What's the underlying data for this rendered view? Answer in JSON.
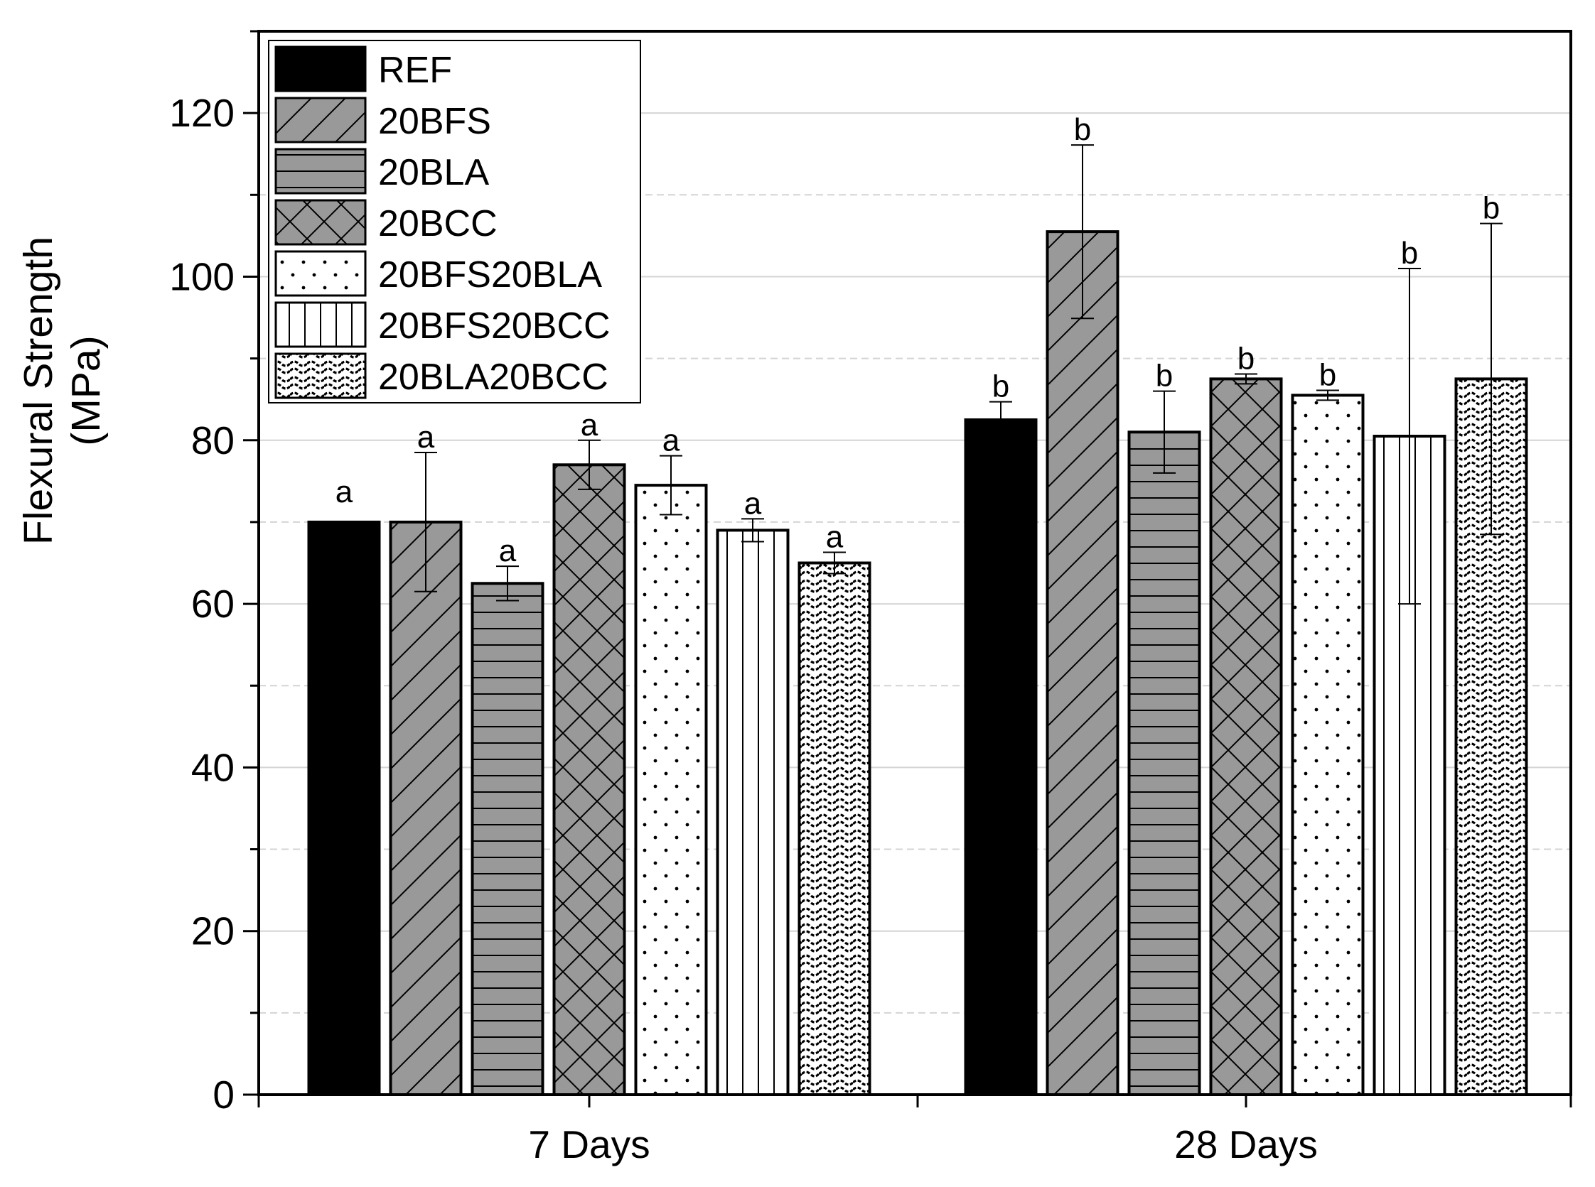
{
  "chart_data": {
    "type": "bar",
    "ylabel_line1": "Flexural Strength",
    "ylabel_line2": "(MPa)",
    "xlabel": "",
    "ylim": [
      0,
      130
    ],
    "yticks": [
      0,
      20,
      40,
      60,
      80,
      100,
      120
    ],
    "categories": [
      "7 Days",
      "28 Days"
    ],
    "grid": true,
    "legend_position": "top-left",
    "series": [
      {
        "name": "REF",
        "pattern": "solid",
        "values": [
          70,
          82.5
        ],
        "errors": [
          0,
          2.2
        ],
        "labels": [
          "a",
          "b"
        ]
      },
      {
        "name": "20BFS",
        "pattern": "diagonal",
        "values": [
          70,
          105.5
        ],
        "errors": [
          8.5,
          10.6
        ],
        "labels": [
          "a",
          "b"
        ]
      },
      {
        "name": "20BLA",
        "pattern": "horizontal",
        "values": [
          62.5,
          81
        ],
        "errors": [
          2.1,
          5
        ],
        "labels": [
          "a",
          "b"
        ]
      },
      {
        "name": "20BCC",
        "pattern": "crosshatch",
        "values": [
          77,
          87.5
        ],
        "errors": [
          3,
          0.6
        ],
        "labels": [
          "a",
          "b"
        ]
      },
      {
        "name": "20BFS20BLA",
        "pattern": "dots",
        "values": [
          74.5,
          85.5
        ],
        "errors": [
          3.6,
          0.6
        ],
        "labels": [
          "a",
          "b"
        ]
      },
      {
        "name": "20BFS20BCC",
        "pattern": "vertical",
        "values": [
          69,
          80.5
        ],
        "errors": [
          1.4,
          20.5
        ],
        "labels": [
          "a",
          "b"
        ]
      },
      {
        "name": "20BLA20BCC",
        "pattern": "waves",
        "values": [
          65,
          87.5
        ],
        "errors": [
          1.3,
          19
        ],
        "labels": [
          "a",
          "b"
        ]
      }
    ]
  }
}
